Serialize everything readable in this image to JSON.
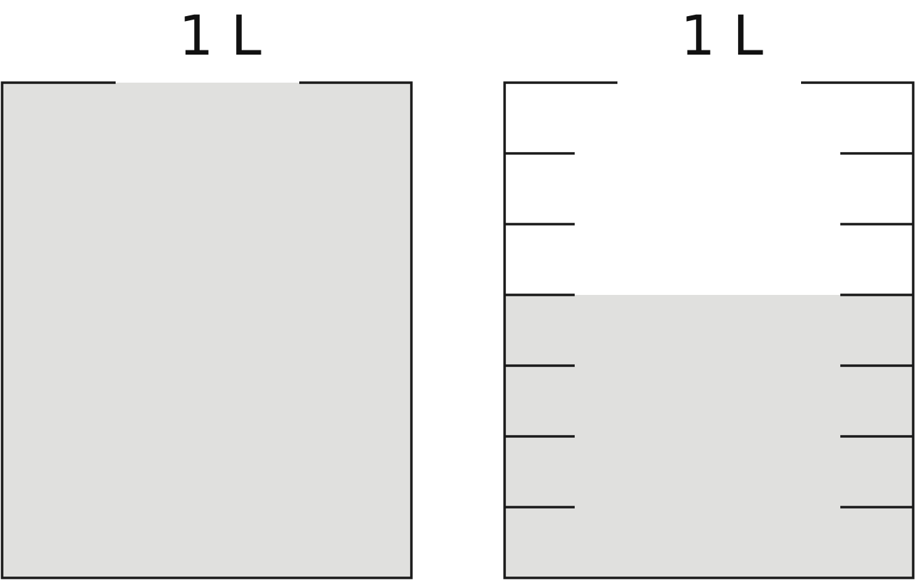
{
  "colors": {
    "fill": "#e0e0de",
    "stroke": "#1a1a1a"
  },
  "containers": [
    {
      "label": "1 L",
      "fill_fraction": 1,
      "divisions": 1
    },
    {
      "label": "1 L",
      "fill_fraction": 0.5714,
      "divisions": 7
    }
  ]
}
